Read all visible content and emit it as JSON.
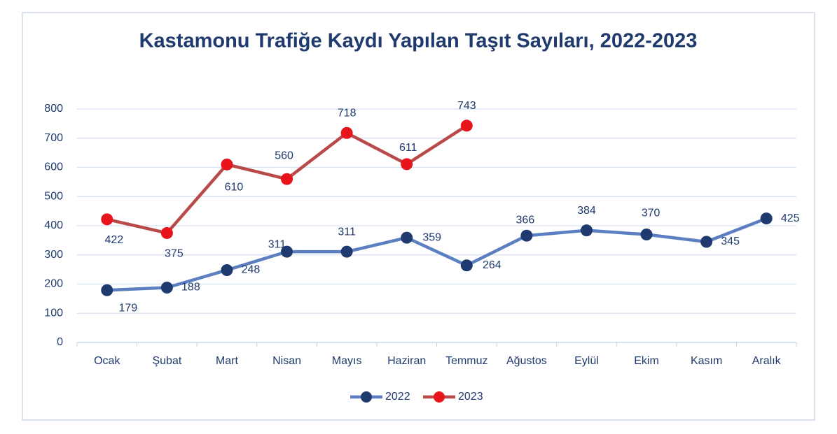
{
  "chart_data": {
    "type": "line",
    "title": "Kastamonu Trafiğe Kaydı Yapılan Taşıt Sayıları, 2022-2023",
    "categories": [
      "Ocak",
      "Şubat",
      "Mart",
      "Nisan",
      "Mayıs",
      "Haziran",
      "Temmuz",
      "Ağustos",
      "Eylül",
      "Ekim",
      "Kasım",
      "Aralık"
    ],
    "series": [
      {
        "name": "2022",
        "color": "#5b7fc0",
        "marker_color": "#1f3a6e",
        "values": [
          179,
          188,
          248,
          311,
          311,
          359,
          264,
          366,
          384,
          370,
          345,
          425
        ]
      },
      {
        "name": "2023",
        "color": "#b94a4a",
        "marker_color": "#e8141c",
        "values": [
          422,
          375,
          610,
          560,
          718,
          611,
          743,
          null,
          null,
          null,
          null,
          null
        ]
      }
    ],
    "ylim": [
      0,
      800
    ],
    "yticks": [
      0,
      100,
      200,
      300,
      400,
      500,
      600,
      700,
      800
    ],
    "grid": true,
    "legend": "bottom"
  }
}
